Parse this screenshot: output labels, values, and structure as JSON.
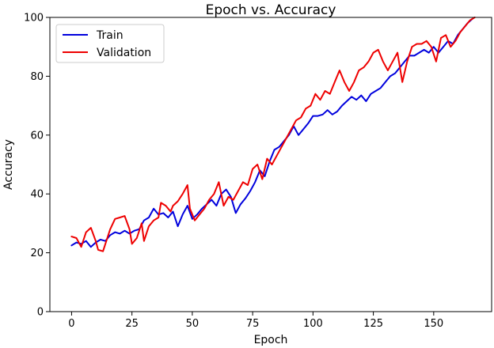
{
  "chart_data": {
    "type": "line",
    "title": "Epoch vs. Accuracy",
    "xlabel": "Epoch",
    "ylabel": "Accuracy",
    "xlim": [
      -9,
      174
    ],
    "ylim": [
      0,
      100
    ],
    "xticks": [
      0,
      25,
      50,
      75,
      100,
      125,
      150
    ],
    "yticks": [
      0,
      20,
      40,
      60,
      80,
      100
    ],
    "legend_position": "upper-left",
    "grid": false,
    "series": [
      {
        "name": "Train",
        "color": "#0000dd",
        "points": [
          [
            0,
            22.5
          ],
          [
            2,
            23.5
          ],
          [
            4,
            23
          ],
          [
            6,
            24
          ],
          [
            8,
            22
          ],
          [
            10,
            23.5
          ],
          [
            12,
            24.5
          ],
          [
            14,
            24
          ],
          [
            16,
            26
          ],
          [
            18,
            27
          ],
          [
            20,
            26.5
          ],
          [
            22,
            27.5
          ],
          [
            24,
            26.5
          ],
          [
            26,
            27.5
          ],
          [
            28,
            28
          ],
          [
            30,
            31
          ],
          [
            32,
            32
          ],
          [
            34,
            35
          ],
          [
            36,
            33
          ],
          [
            38,
            33.5
          ],
          [
            40,
            32
          ],
          [
            42,
            34
          ],
          [
            44,
            29
          ],
          [
            46,
            33
          ],
          [
            48,
            36
          ],
          [
            50,
            31.5
          ],
          [
            52,
            33
          ],
          [
            54,
            35
          ],
          [
            56,
            36.5
          ],
          [
            58,
            38
          ],
          [
            60,
            36
          ],
          [
            62,
            40
          ],
          [
            64,
            41.5
          ],
          [
            66,
            39
          ],
          [
            68,
            33.5
          ],
          [
            70,
            36.5
          ],
          [
            72,
            38.5
          ],
          [
            74,
            41
          ],
          [
            76,
            44
          ],
          [
            78,
            48
          ],
          [
            80,
            46
          ],
          [
            82,
            51
          ],
          [
            84,
            55
          ],
          [
            86,
            56
          ],
          [
            88,
            58
          ],
          [
            90,
            60
          ],
          [
            92,
            63
          ],
          [
            94,
            60
          ],
          [
            96,
            62
          ],
          [
            98,
            64
          ],
          [
            100,
            66.5
          ],
          [
            102,
            66.5
          ],
          [
            104,
            67
          ],
          [
            106,
            68.5
          ],
          [
            108,
            67
          ],
          [
            110,
            68
          ],
          [
            112,
            70
          ],
          [
            114,
            71.5
          ],
          [
            116,
            73
          ],
          [
            118,
            72
          ],
          [
            120,
            73.5
          ],
          [
            122,
            71.5
          ],
          [
            124,
            74
          ],
          [
            126,
            75
          ],
          [
            128,
            76
          ],
          [
            130,
            78
          ],
          [
            132,
            80
          ],
          [
            134,
            81
          ],
          [
            136,
            83
          ],
          [
            138,
            85
          ],
          [
            140,
            87
          ],
          [
            142,
            87
          ],
          [
            144,
            88
          ],
          [
            146,
            89
          ],
          [
            148,
            88
          ],
          [
            150,
            90
          ],
          [
            152,
            88
          ],
          [
            154,
            90
          ],
          [
            156,
            92
          ],
          [
            158,
            91
          ],
          [
            160,
            94
          ],
          [
            162,
            96
          ],
          [
            164,
            98
          ],
          [
            166,
            99.5
          ]
        ]
      },
      {
        "name": "Validation",
        "color": "#ee0000",
        "points": [
          [
            0,
            25.5
          ],
          [
            2,
            25
          ],
          [
            4,
            22
          ],
          [
            6,
            27
          ],
          [
            8,
            28.5
          ],
          [
            10,
            24
          ],
          [
            11,
            21
          ],
          [
            13,
            20.5
          ],
          [
            14,
            23
          ],
          [
            16,
            28
          ],
          [
            18,
            31.5
          ],
          [
            20,
            32
          ],
          [
            22,
            32.5
          ],
          [
            24,
            28
          ],
          [
            25,
            23
          ],
          [
            27,
            25
          ],
          [
            29,
            30
          ],
          [
            30,
            24
          ],
          [
            32,
            29
          ],
          [
            34,
            31
          ],
          [
            36,
            32
          ],
          [
            37,
            37
          ],
          [
            39,
            36
          ],
          [
            41,
            34
          ],
          [
            42,
            36
          ],
          [
            44,
            37.5
          ],
          [
            46,
            40
          ],
          [
            48,
            43
          ],
          [
            49,
            35
          ],
          [
            51,
            31
          ],
          [
            53,
            33
          ],
          [
            55,
            35
          ],
          [
            57,
            38
          ],
          [
            59,
            40
          ],
          [
            61,
            44
          ],
          [
            63,
            36
          ],
          [
            65,
            39
          ],
          [
            67,
            38
          ],
          [
            69,
            41
          ],
          [
            71,
            44
          ],
          [
            73,
            43
          ],
          [
            75,
            48.5
          ],
          [
            77,
            50
          ],
          [
            79,
            45
          ],
          [
            81,
            52
          ],
          [
            83,
            50
          ],
          [
            85,
            53
          ],
          [
            87,
            56
          ],
          [
            89,
            59
          ],
          [
            91,
            62
          ],
          [
            93,
            65
          ],
          [
            95,
            66
          ],
          [
            97,
            69
          ],
          [
            99,
            70
          ],
          [
            101,
            74
          ],
          [
            103,
            72
          ],
          [
            105,
            75
          ],
          [
            107,
            74
          ],
          [
            109,
            78
          ],
          [
            111,
            82
          ],
          [
            113,
            78
          ],
          [
            115,
            75
          ],
          [
            117,
            78
          ],
          [
            119,
            82
          ],
          [
            121,
            83
          ],
          [
            123,
            85
          ],
          [
            125,
            88
          ],
          [
            127,
            89
          ],
          [
            129,
            85
          ],
          [
            131,
            82
          ],
          [
            133,
            85
          ],
          [
            135,
            88
          ],
          [
            137,
            78
          ],
          [
            139,
            85
          ],
          [
            141,
            90
          ],
          [
            143,
            91
          ],
          [
            145,
            91
          ],
          [
            147,
            92
          ],
          [
            149,
            90
          ],
          [
            151,
            85
          ],
          [
            153,
            93
          ],
          [
            155,
            94
          ],
          [
            157,
            90
          ],
          [
            159,
            92
          ],
          [
            161,
            95
          ],
          [
            163,
            97
          ],
          [
            165,
            99
          ],
          [
            167,
            100
          ]
        ]
      }
    ]
  }
}
